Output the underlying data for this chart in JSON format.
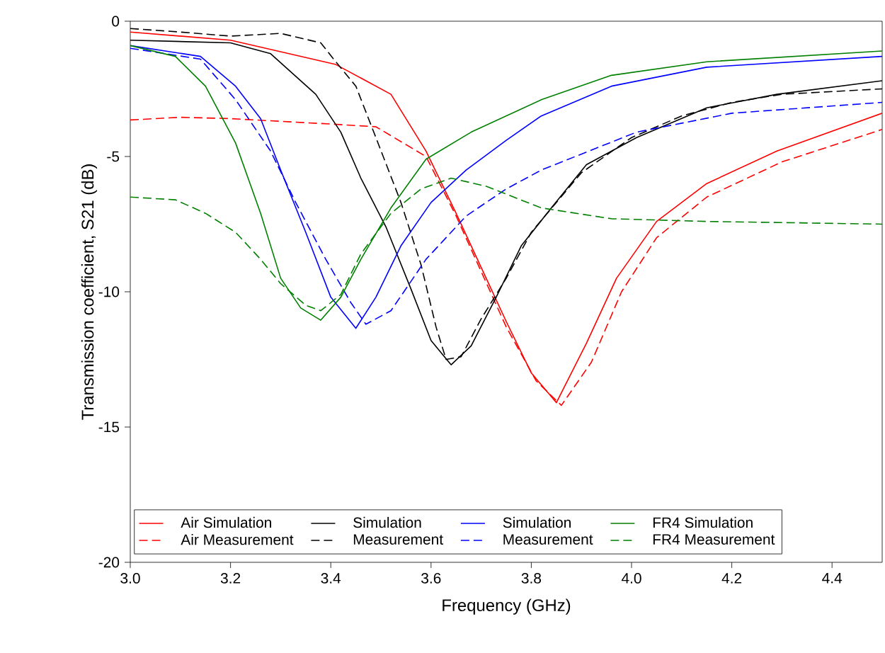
{
  "chart_data": {
    "type": "line",
    "xlabel": "Frequency (GHz)",
    "ylabel": "Transmission coefficient, S21 (dB)",
    "xlim": [
      3.0,
      4.5
    ],
    "ylim": [
      -20,
      0
    ],
    "xticks": [
      {
        "value": 3.0,
        "label": "3.0"
      },
      {
        "value": 3.2,
        "label": "3.2"
      },
      {
        "value": 3.4,
        "label": "3.4"
      },
      {
        "value": 3.6,
        "label": "3.6"
      },
      {
        "value": 3.8,
        "label": "3.8"
      },
      {
        "value": 4.0,
        "label": "4.0"
      },
      {
        "value": 4.2,
        "label": "4.2"
      },
      {
        "value": 4.4,
        "label": "4.4"
      }
    ],
    "yticks": [
      0,
      -5,
      -10,
      -15,
      -20
    ],
    "legend": "bottom",
    "grid": false,
    "marker": "none",
    "series": [
      {
        "name": "Air Simulation",
        "color": "#ff0000",
        "line_style": "solid",
        "x": [
          3.0,
          3.2,
          3.41,
          3.52,
          3.59,
          3.65,
          3.71,
          3.75,
          3.8,
          3.85,
          3.91,
          3.97,
          4.05,
          4.15,
          4.29,
          4.5
        ],
        "values": [
          -0.4,
          -0.7,
          -1.6,
          -2.7,
          -4.8,
          -7.1,
          -9.5,
          -11.1,
          -13.0,
          -14.1,
          -11.9,
          -9.5,
          -7.4,
          -6.0,
          -4.8,
          -3.4
        ]
      },
      {
        "name": "Air Measurement",
        "color": "#ff0000",
        "line_style": "dashed",
        "x": [
          3.0,
          3.1,
          3.2,
          3.4,
          3.49,
          3.59,
          3.65,
          3.75,
          3.81,
          3.86,
          3.92,
          3.98,
          4.05,
          4.15,
          4.3,
          4.5
        ],
        "values": [
          -3.65,
          -3.55,
          -3.6,
          -3.8,
          -3.9,
          -5.0,
          -7.2,
          -11.3,
          -13.3,
          -14.2,
          -12.6,
          -10.0,
          -8.0,
          -6.5,
          -5.2,
          -4.0
        ]
      },
      {
        "name": "Simulation",
        "color": "#000000",
        "line_style": "solid",
        "x": [
          3.0,
          3.2,
          3.28,
          3.37,
          3.42,
          3.46,
          3.51,
          3.56,
          3.6,
          3.64,
          3.68,
          3.73,
          3.78,
          3.84,
          3.91,
          4.01,
          4.15,
          4.29,
          4.5
        ],
        "values": [
          -0.7,
          -0.8,
          -1.2,
          -2.7,
          -4.1,
          -5.8,
          -7.6,
          -9.9,
          -11.8,
          -12.7,
          -12.0,
          -10.2,
          -8.3,
          -6.9,
          -5.3,
          -4.3,
          -3.2,
          -2.7,
          -2.2
        ]
      },
      {
        "name": "Measurement",
        "color": "#000000",
        "line_style": "dashed",
        "x": [
          3.0,
          3.1,
          3.2,
          3.3,
          3.38,
          3.41,
          3.45,
          3.49,
          3.54,
          3.58,
          3.61,
          3.63,
          3.66,
          3.7,
          3.75,
          3.8,
          3.9,
          4.0,
          4.1,
          4.2,
          4.3,
          4.5
        ],
        "values": [
          -0.27,
          -0.4,
          -0.55,
          -0.45,
          -0.8,
          -1.5,
          -2.4,
          -4.3,
          -6.7,
          -9.0,
          -11.3,
          -12.5,
          -12.4,
          -11.0,
          -9.5,
          -7.8,
          -5.6,
          -4.3,
          -3.5,
          -3.0,
          -2.7,
          -2.5
        ]
      },
      {
        "name": "Simulation",
        "color": "#0000ff",
        "line_style": "solid",
        "x": [
          3.0,
          3.14,
          3.21,
          3.26,
          3.3,
          3.35,
          3.4,
          3.45,
          3.49,
          3.54,
          3.6,
          3.67,
          3.75,
          3.82,
          3.96,
          4.15,
          4.5
        ],
        "values": [
          -0.9,
          -1.3,
          -2.4,
          -3.6,
          -5.5,
          -7.8,
          -10.2,
          -11.35,
          -10.2,
          -8.3,
          -6.7,
          -5.5,
          -4.4,
          -3.5,
          -2.4,
          -1.7,
          -1.3
        ]
      },
      {
        "name": "Measurement",
        "color": "#0000ff",
        "line_style": "dashed",
        "x": [
          3.0,
          3.14,
          3.21,
          3.28,
          3.33,
          3.39,
          3.44,
          3.47,
          3.52,
          3.59,
          3.67,
          3.75,
          3.82,
          4.01,
          4.2,
          4.5
        ],
        "values": [
          -1.0,
          -1.4,
          -2.9,
          -4.8,
          -6.7,
          -8.8,
          -10.4,
          -11.2,
          -10.7,
          -8.8,
          -7.2,
          -6.2,
          -5.5,
          -4.1,
          -3.4,
          -3.0
        ]
      },
      {
        "name": "FR4 Simulation",
        "color": "#008000",
        "line_style": "solid",
        "x": [
          3.0,
          3.09,
          3.15,
          3.21,
          3.26,
          3.3,
          3.34,
          3.38,
          3.42,
          3.46,
          3.52,
          3.59,
          3.68,
          3.75,
          3.82,
          3.96,
          4.15,
          4.5
        ],
        "values": [
          -0.9,
          -1.3,
          -2.4,
          -4.5,
          -7.1,
          -9.5,
          -10.6,
          -11.05,
          -10.2,
          -8.8,
          -6.9,
          -5.1,
          -4.1,
          -3.5,
          -2.9,
          -2.0,
          -1.5,
          -1.1
        ]
      },
      {
        "name": "FR4 Measurement",
        "color": "#008000",
        "line_style": "dashed",
        "x": [
          3.0,
          3.09,
          3.15,
          3.21,
          3.26,
          3.3,
          3.35,
          3.38,
          3.42,
          3.46,
          3.52,
          3.58,
          3.64,
          3.71,
          3.82,
          3.96,
          4.15,
          4.5
        ],
        "values": [
          -6.5,
          -6.6,
          -7.1,
          -7.8,
          -8.8,
          -9.7,
          -10.5,
          -10.7,
          -10.1,
          -8.6,
          -7.1,
          -6.2,
          -5.8,
          -6.1,
          -6.9,
          -7.3,
          -7.4,
          -7.5
        ]
      }
    ]
  }
}
